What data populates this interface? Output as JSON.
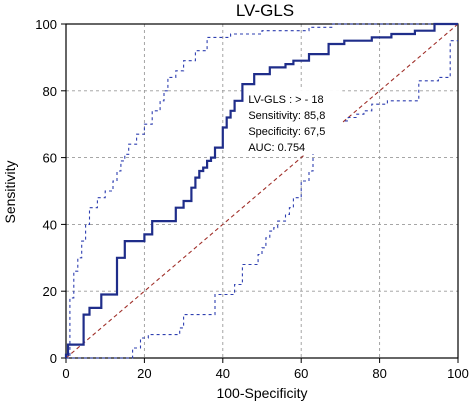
{
  "chart_data": {
    "type": "line",
    "title": "LV-GLS",
    "xlabel": "100-Specificity",
    "ylabel": "Sensitivity",
    "xlim": [
      0,
      100
    ],
    "ylim": [
      0,
      100
    ],
    "xticks": [
      0,
      20,
      40,
      60,
      80,
      100
    ],
    "yticks": [
      0,
      20,
      40,
      60,
      80,
      100
    ],
    "grid": true,
    "colors": {
      "roc": "#1f2d8a",
      "ci": "#2e3fb0",
      "reference": "#a0302a",
      "grid": "#9a9a9a",
      "box_border": "#333333"
    },
    "annotation": {
      "lines": [
        "LV-GLS : > - 18",
        "Sensitivity: 85,8",
        "Specificity: 67,5",
        "AUC: 0.754"
      ]
    },
    "series": [
      {
        "role": "roc",
        "x": [
          0,
          0,
          0.5,
          0.5,
          4.5,
          4.5,
          6,
          6,
          9,
          9,
          13,
          13,
          15,
          15,
          20,
          20,
          22,
          22,
          28,
          28,
          30,
          30,
          32,
          32,
          33,
          33,
          34,
          34,
          35,
          35,
          36,
          36,
          37,
          37,
          38,
          38,
          40,
          40,
          41,
          41,
          42,
          42,
          43,
          43,
          45,
          45,
          48,
          48,
          52,
          52,
          56,
          56,
          58,
          58,
          62,
          62,
          67,
          67,
          71,
          71,
          78,
          78,
          83,
          83,
          89,
          89,
          94,
          94,
          100
        ],
        "y": [
          0,
          1,
          1,
          4,
          4,
          13,
          13,
          15,
          15,
          19,
          19,
          30,
          30,
          35,
          35,
          37,
          37,
          41,
          41,
          45,
          45,
          47,
          47,
          51,
          51,
          54,
          54,
          56,
          56,
          57,
          57,
          59,
          59,
          60,
          60,
          63,
          63,
          69,
          69,
          72,
          72,
          74,
          74,
          77,
          77,
          82,
          82,
          85,
          85,
          87,
          87,
          88,
          88,
          89,
          89,
          91,
          91,
          94,
          94,
          95,
          95,
          96,
          96,
          97,
          97,
          98,
          98,
          100,
          100
        ]
      },
      {
        "role": "ci-upper",
        "x": [
          0,
          1,
          1,
          2,
          2,
          3,
          3,
          4,
          4,
          5,
          5,
          6,
          6,
          8,
          8,
          10,
          10,
          12,
          12,
          13,
          13,
          14,
          14,
          15,
          15,
          16,
          16,
          18,
          18,
          20,
          20,
          22,
          22,
          24,
          24,
          25,
          25,
          26,
          26,
          28,
          28,
          30,
          30,
          33,
          33,
          36,
          36,
          42,
          42,
          50,
          50,
          62,
          62,
          68,
          68,
          80,
          80,
          90,
          90,
          100
        ],
        "y": [
          0,
          0,
          18,
          18,
          26,
          26,
          30,
          30,
          35,
          35,
          40,
          40,
          45,
          45,
          48,
          48,
          50,
          50,
          53,
          53,
          56,
          56,
          59,
          59,
          61,
          61,
          64,
          64,
          67,
          67,
          70,
          70,
          74,
          74,
          77,
          77,
          80,
          80,
          84,
          84,
          86,
          86,
          89,
          89,
          92,
          92,
          96,
          96,
          97,
          97,
          98,
          98,
          99,
          99,
          100,
          100,
          100,
          100,
          100,
          100
        ]
      },
      {
        "role": "ci-lower",
        "x": [
          0,
          17,
          17,
          19,
          19,
          21,
          21,
          29,
          29,
          30,
          30,
          38,
          38,
          43,
          43,
          45,
          45,
          49,
          49,
          50,
          50,
          51,
          51,
          52,
          52,
          53,
          53,
          54,
          54,
          56,
          56,
          57,
          57,
          58,
          58,
          60,
          60,
          62,
          62,
          63,
          63,
          70,
          70,
          72,
          72,
          74,
          74,
          76,
          76,
          78,
          78,
          82,
          82,
          90,
          90,
          95,
          95,
          98,
          98,
          100
        ],
        "y": [
          0,
          0,
          3,
          3,
          6,
          6,
          7,
          7,
          9,
          9,
          13,
          13,
          19,
          19,
          22,
          22,
          28,
          28,
          31,
          31,
          33,
          33,
          36,
          36,
          38,
          38,
          39,
          39,
          41,
          41,
          43,
          43,
          45,
          45,
          48,
          48,
          53,
          53,
          56,
          56,
          70,
          70,
          71,
          71,
          72,
          72,
          73,
          73,
          74,
          74,
          76,
          76,
          77,
          77,
          83,
          83,
          84,
          84,
          95,
          95
        ]
      },
      {
        "role": "reference",
        "x": [
          0,
          100
        ],
        "y": [
          0,
          100
        ]
      }
    ]
  }
}
